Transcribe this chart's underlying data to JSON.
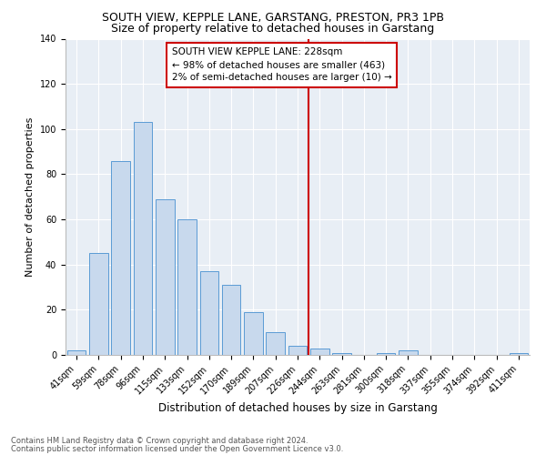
{
  "title": "SOUTH VIEW, KEPPLE LANE, GARSTANG, PRESTON, PR3 1PB",
  "subtitle": "Size of property relative to detached houses in Garstang",
  "xlabel": "Distribution of detached houses by size in Garstang",
  "ylabel": "Number of detached properties",
  "categories": [
    "41sqm",
    "59sqm",
    "78sqm",
    "96sqm",
    "115sqm",
    "133sqm",
    "152sqm",
    "170sqm",
    "189sqm",
    "207sqm",
    "226sqm",
    "244sqm",
    "263sqm",
    "281sqm",
    "300sqm",
    "318sqm",
    "337sqm",
    "355sqm",
    "374sqm",
    "392sqm",
    "411sqm"
  ],
  "values": [
    2,
    45,
    86,
    103,
    69,
    60,
    37,
    31,
    19,
    10,
    4,
    3,
    1,
    0,
    1,
    2,
    0,
    0,
    0,
    0,
    1
  ],
  "bar_color": "#c8d9ed",
  "bar_edge_color": "#5b9bd5",
  "plot_bg_color": "#e8eef5",
  "background_color": "#ffffff",
  "grid_color": "#ffffff",
  "vline_x": 10.5,
  "vline_color": "#cc0000",
  "annotation_text": "SOUTH VIEW KEPPLE LANE: 228sqm\n← 98% of detached houses are smaller (463)\n2% of semi-detached houses are larger (10) →",
  "annotation_box_color": "#cc0000",
  "ylim": [
    0,
    140
  ],
  "yticks": [
    0,
    20,
    40,
    60,
    80,
    100,
    120,
    140
  ],
  "footer_line1": "Contains HM Land Registry data © Crown copyright and database right 2024.",
  "footer_line2": "Contains public sector information licensed under the Open Government Licence v3.0.",
  "title_fontsize": 9,
  "subtitle_fontsize": 9,
  "tick_fontsize": 7,
  "ylabel_fontsize": 8,
  "xlabel_fontsize": 8.5,
  "footer_fontsize": 6,
  "annot_fontsize": 7.5
}
